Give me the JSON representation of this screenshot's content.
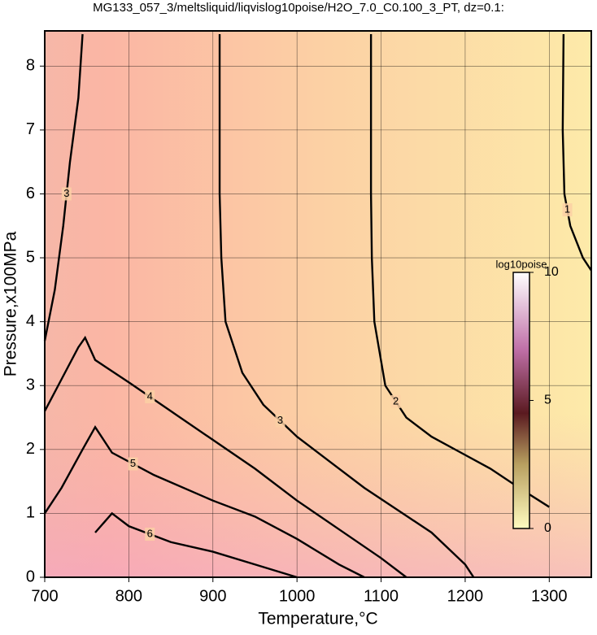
{
  "chart_data": {
    "type": "contour",
    "title": "MG133_057_3/meltsliquid/liqvislog10poise/H2O_7.0_C0.100_3_PT, dz=0.1:",
    "x_label": "Temperature,°C",
    "y_label": "Pressure,x100MPa",
    "xlim": [
      700,
      1350
    ],
    "ylim": [
      0,
      8.5
    ],
    "xticks": [
      700,
      800,
      900,
      1000,
      1100,
      1200,
      1300
    ],
    "yticks": [
      0,
      1,
      2,
      3,
      4,
      5,
      6,
      7,
      8
    ],
    "grid": true,
    "colorbar_label": "log10poise",
    "clim": [
      0,
      10
    ],
    "cticks": [
      0,
      5,
      10
    ],
    "contours": [
      {
        "level": 1,
        "x": [
          1317,
          1316,
          1318,
          1325,
          1340,
          1350
        ],
        "y": [
          8.5,
          7,
          6,
          5.5,
          5,
          4.8
        ]
      },
      {
        "level": 2,
        "x": [
          1088,
          1088,
          1089,
          1092,
          1105,
          1130,
          1160,
          1195,
          1230,
          1270,
          1300
        ],
        "y": [
          8.5,
          6,
          5,
          4,
          3,
          2.5,
          2.2,
          1.95,
          1.7,
          1.35,
          1.1
        ]
      },
      {
        "level": 3,
        "x": [
          908,
          908,
          910,
          915,
          935,
          960,
          1000,
          1040,
          1080,
          1120,
          1160,
          1200,
          1210
        ],
        "y": [
          8.5,
          6,
          5,
          4,
          3.2,
          2.7,
          2.2,
          1.8,
          1.4,
          1.05,
          0.7,
          0.2,
          0
        ]
      },
      {
        "level": 3,
        "x": [
          700,
          712,
          722,
          730,
          740,
          745
        ],
        "y": [
          3.7,
          4.5,
          5.5,
          6.5,
          7.5,
          8.5
        ]
      },
      {
        "level": 4,
        "x": [
          700,
          720,
          740,
          748,
          760,
          800,
          850,
          900,
          950,
          1000,
          1050,
          1100,
          1130
        ],
        "y": [
          2.6,
          3.1,
          3.6,
          3.75,
          3.4,
          3.05,
          2.6,
          2.15,
          1.7,
          1.2,
          0.75,
          0.3,
          0
        ]
      },
      {
        "level": 5,
        "x": [
          700,
          720,
          745,
          760,
          780,
          830,
          900,
          950,
          1000,
          1050,
          1080
        ],
        "y": [
          1.0,
          1.4,
          2.0,
          2.35,
          1.95,
          1.6,
          1.2,
          0.95,
          0.6,
          0.2,
          0
        ]
      },
      {
        "level": 6,
        "x": [
          760,
          780,
          800,
          850,
          900,
          950,
          1000
        ],
        "y": [
          0.7,
          1.0,
          0.8,
          0.55,
          0.4,
          0.2,
          0
        ]
      }
    ]
  }
}
